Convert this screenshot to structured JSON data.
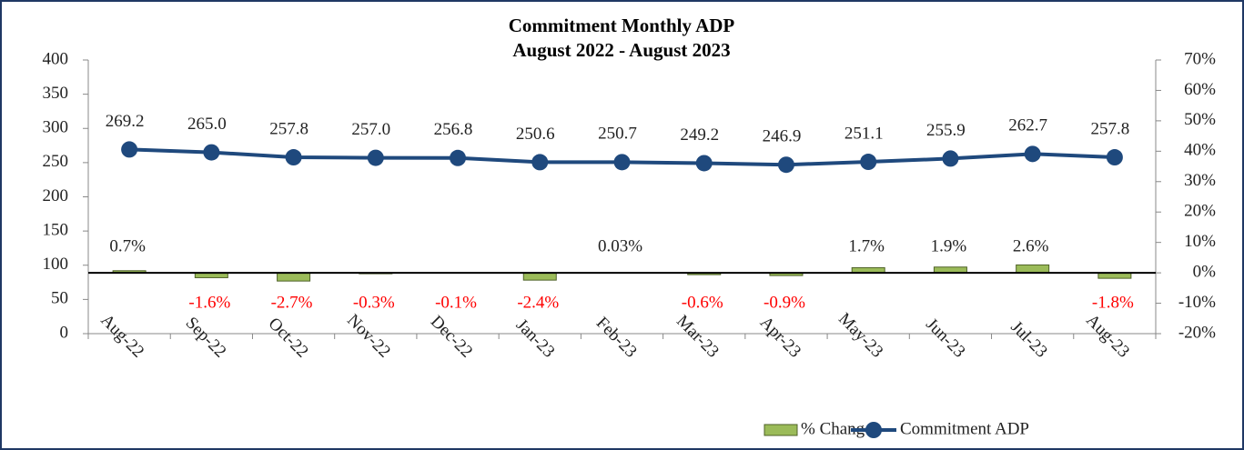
{
  "chart_data": {
    "type": "combo",
    "title": "Commitment Monthly ADP",
    "subtitle": "August 2022 - August 2023",
    "categories": [
      "Aug-22",
      "Sep-22",
      "Oct-22",
      "Nov-22",
      "Dec-22",
      "Jan-23",
      "Feb-23",
      "Mar-23",
      "Apr-23",
      "May-23",
      "Jun-23",
      "Jul-23",
      "Aug-23"
    ],
    "series": [
      {
        "name": "% Change",
        "type": "bar",
        "axis": "y2",
        "color": "#9bbb59",
        "values": [
          0.7,
          -1.6,
          -2.7,
          -0.3,
          -0.1,
          -2.4,
          0.03,
          -0.6,
          -0.9,
          1.7,
          1.9,
          2.6,
          -1.8
        ],
        "value_labels": [
          "0.7%",
          "-1.6%",
          "-2.7%",
          "-0.3%",
          "-0.1%",
          "-2.4%",
          "0.03%",
          "-0.6%",
          "-0.9%",
          "1.7%",
          "1.9%",
          "2.6%",
          "-1.8%"
        ]
      },
      {
        "name": "Commitment ADP",
        "type": "line",
        "color": "#1f497d",
        "values": [
          269.2,
          265.0,
          257.8,
          257.0,
          256.8,
          250.6,
          250.7,
          249.2,
          246.9,
          251.1,
          255.9,
          262.7,
          257.8
        ],
        "value_labels": [
          "269.2",
          "265.0",
          "257.8",
          "257.0",
          "256.8",
          "250.6",
          "250.7",
          "249.2",
          "246.9",
          "251.1",
          "255.9",
          "262.7",
          "257.8"
        ]
      }
    ],
    "ylim": [
      0,
      400
    ],
    "yticks": [
      0,
      50,
      100,
      150,
      200,
      250,
      300,
      350,
      400
    ],
    "y2lim": [
      -20,
      70
    ],
    "y2ticks": [
      {
        "value": -20,
        "label": "-20%"
      },
      {
        "value": -10,
        "label": "-10%"
      },
      {
        "value": 0,
        "label": "0%"
      },
      {
        "value": 10,
        "label": "10%"
      },
      {
        "value": 20,
        "label": "20%"
      },
      {
        "value": 30,
        "label": "30%"
      },
      {
        "value": 40,
        "label": "40%"
      },
      {
        "value": 50,
        "label": "50%"
      },
      {
        "value": 60,
        "label": "60%"
      },
      {
        "value": 70,
        "label": "70%"
      }
    ],
    "negative_label_color": "#ff0000",
    "legend": "bottom"
  }
}
